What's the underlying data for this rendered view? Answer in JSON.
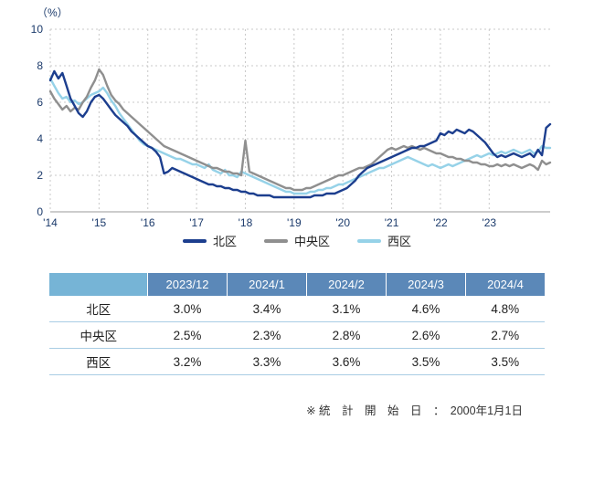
{
  "theme": {
    "axis_label": "#1b3a6b",
    "grid": "#c8c8c8",
    "axis_line": "#9a9a9a",
    "table_header_bg": "#5b88b8",
    "table_header_first_bg": "#76b4d6",
    "table_border": "#a9cde4"
  },
  "chart_data": {
    "type": "line",
    "title": "",
    "xlabel": "",
    "ylabel": "（%）",
    "ylim": [
      0,
      10
    ],
    "yticks": [
      0,
      2,
      4,
      6,
      8,
      10
    ],
    "grid": true,
    "legend_position": "bottom",
    "x_start": "2014-01",
    "x_interval": "monthly",
    "x_tick_labels": [
      "'14",
      "'15",
      "'16",
      "'17",
      "'18",
      "'19",
      "'20",
      "'21",
      "'22",
      "'23"
    ],
    "series": [
      {
        "name": "北区",
        "color": "#1c3e8e",
        "values": [
          7.2,
          7.7,
          7.3,
          7.6,
          6.9,
          6.2,
          5.8,
          5.4,
          5.2,
          5.5,
          6.0,
          6.3,
          6.4,
          6.2,
          5.9,
          5.6,
          5.3,
          5.1,
          4.9,
          4.7,
          4.4,
          4.2,
          4.0,
          3.8,
          3.6,
          3.5,
          3.3,
          3.0,
          2.1,
          2.2,
          2.4,
          2.3,
          2.2,
          2.1,
          2.0,
          1.9,
          1.8,
          1.7,
          1.6,
          1.5,
          1.5,
          1.4,
          1.4,
          1.3,
          1.3,
          1.2,
          1.2,
          1.1,
          1.1,
          1.0,
          1.0,
          0.9,
          0.9,
          0.9,
          0.9,
          0.8,
          0.8,
          0.8,
          0.8,
          0.8,
          0.8,
          0.8,
          0.8,
          0.8,
          0.8,
          0.9,
          0.9,
          0.9,
          1.0,
          1.0,
          1.0,
          1.1,
          1.2,
          1.3,
          1.5,
          1.7,
          2.0,
          2.2,
          2.4,
          2.5,
          2.6,
          2.7,
          2.8,
          2.9,
          3.0,
          3.1,
          3.2,
          3.3,
          3.4,
          3.5,
          3.5,
          3.6,
          3.6,
          3.7,
          3.8,
          3.9,
          4.3,
          4.2,
          4.4,
          4.3,
          4.5,
          4.4,
          4.3,
          4.5,
          4.4,
          4.2,
          4.0,
          3.8,
          3.5,
          3.2,
          3.0,
          3.1,
          3.0,
          3.1,
          3.2,
          3.1,
          3.0,
          3.1,
          3.2,
          3.0,
          3.4,
          3.1,
          4.6,
          4.8
        ]
      },
      {
        "name": "中央区",
        "color": "#8f8f8f",
        "values": [
          6.6,
          6.2,
          5.9,
          5.6,
          5.8,
          5.5,
          5.7,
          5.6,
          6.0,
          6.3,
          6.8,
          7.2,
          7.8,
          7.5,
          6.9,
          6.4,
          6.1,
          5.9,
          5.6,
          5.4,
          5.2,
          5.0,
          4.8,
          4.6,
          4.4,
          4.2,
          4.0,
          3.8,
          3.6,
          3.5,
          3.4,
          3.3,
          3.2,
          3.1,
          3.0,
          2.9,
          2.8,
          2.7,
          2.6,
          2.5,
          2.4,
          2.4,
          2.3,
          2.2,
          2.2,
          2.1,
          2.1,
          2.0,
          3.9,
          2.2,
          2.1,
          2.0,
          1.9,
          1.8,
          1.7,
          1.6,
          1.5,
          1.4,
          1.3,
          1.3,
          1.2,
          1.2,
          1.2,
          1.3,
          1.3,
          1.4,
          1.5,
          1.6,
          1.7,
          1.8,
          1.9,
          2.0,
          2.0,
          2.1,
          2.2,
          2.3,
          2.4,
          2.4,
          2.5,
          2.6,
          2.8,
          3.0,
          3.2,
          3.4,
          3.5,
          3.4,
          3.5,
          3.6,
          3.5,
          3.6,
          3.5,
          3.4,
          3.5,
          3.4,
          3.3,
          3.2,
          3.2,
          3.1,
          3.0,
          3.0,
          2.9,
          2.9,
          2.8,
          2.8,
          2.7,
          2.7,
          2.6,
          2.6,
          2.5,
          2.5,
          2.6,
          2.5,
          2.6,
          2.5,
          2.6,
          2.5,
          2.4,
          2.5,
          2.6,
          2.5,
          2.3,
          2.8,
          2.6,
          2.7
        ]
      },
      {
        "name": "西区",
        "color": "#96d2e8",
        "values": [
          7.3,
          6.9,
          6.5,
          6.2,
          6.3,
          6.0,
          6.1,
          5.9,
          6.0,
          6.2,
          6.4,
          6.5,
          6.6,
          6.8,
          6.5,
          6.1,
          5.8,
          5.4,
          5.1,
          4.8,
          4.5,
          4.2,
          3.9,
          3.7,
          3.6,
          3.5,
          3.4,
          3.3,
          3.2,
          3.1,
          3.0,
          2.9,
          2.9,
          2.8,
          2.7,
          2.6,
          2.6,
          2.5,
          2.4,
          2.6,
          2.3,
          2.2,
          2.1,
          2.3,
          2.0,
          2.0,
          1.9,
          2.2,
          2.1,
          2.0,
          1.9,
          1.8,
          1.7,
          1.6,
          1.5,
          1.4,
          1.3,
          1.2,
          1.1,
          1.1,
          1.0,
          1.0,
          1.0,
          1.0,
          1.1,
          1.1,
          1.2,
          1.2,
          1.3,
          1.3,
          1.4,
          1.5,
          1.5,
          1.6,
          1.7,
          1.8,
          1.9,
          2.0,
          2.1,
          2.2,
          2.3,
          2.4,
          2.4,
          2.5,
          2.6,
          2.7,
          2.8,
          2.9,
          3.0,
          2.9,
          2.8,
          2.7,
          2.6,
          2.5,
          2.6,
          2.5,
          2.4,
          2.5,
          2.6,
          2.5,
          2.6,
          2.7,
          2.8,
          2.9,
          3.0,
          3.1,
          3.0,
          3.1,
          3.2,
          3.1,
          3.2,
          3.3,
          3.2,
          3.3,
          3.4,
          3.3,
          3.2,
          3.3,
          3.4,
          3.2,
          3.3,
          3.6,
          3.5,
          3.5
        ]
      }
    ]
  },
  "table": {
    "col_headers": [
      "",
      "2023/12",
      "2024/1",
      "2024/2",
      "2024/3",
      "2024/4"
    ],
    "rows": [
      {
        "label": "北区",
        "values": [
          "3.0%",
          "3.4%",
          "3.1%",
          "4.6%",
          "4.8%"
        ]
      },
      {
        "label": "中央区",
        "values": [
          "2.5%",
          "2.3%",
          "2.8%",
          "2.6%",
          "2.7%"
        ]
      },
      {
        "label": "西区",
        "values": [
          "3.2%",
          "3.3%",
          "3.6%",
          "3.5%",
          "3.5%"
        ]
      }
    ]
  },
  "footnote": "※ 統　計　開　始　日　：　2000年1月1日"
}
